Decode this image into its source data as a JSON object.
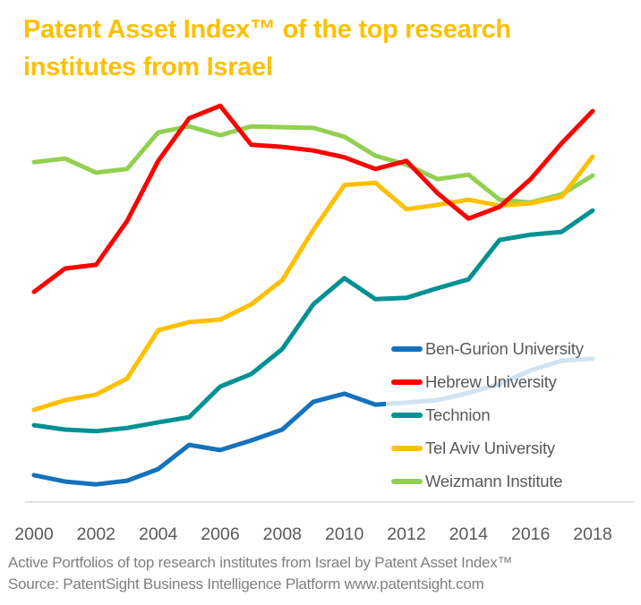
{
  "page": {
    "background_color": "#FFFFFF"
  },
  "title": {
    "text": "Patent Asset Index™ of the top research institutes from Israel",
    "lines": [
      "Patent Asset Index™ of the top research",
      "institutes from Israel"
    ],
    "color": "#FFC000"
  },
  "chart_data": {
    "type": "line",
    "x": [
      2000,
      2001,
      2002,
      2003,
      2004,
      2005,
      2006,
      2007,
      2008,
      2009,
      2010,
      2011,
      2012,
      2013,
      2014,
      2015,
      2016,
      2017,
      2018
    ],
    "x_ticks": [
      "2000",
      "2002",
      "2004",
      "2006",
      "2008",
      "2010",
      "2012",
      "2014",
      "2016",
      "2018"
    ],
    "series": [
      {
        "name": "Ben-Gurion University",
        "color": "#1572BD",
        "values": [
          6.7,
          5.1,
          4.4,
          5.3,
          8.2,
          14.2,
          12.9,
          15.3,
          18.0,
          24.9,
          26.9,
          24.2,
          24.7,
          25.3,
          27.1,
          29.3,
          32.7,
          35.1,
          35.6
        ]
      },
      {
        "name": "Hebrew University",
        "color": "#FE0000",
        "values": [
          52.2,
          58.0,
          58.9,
          69.8,
          84.7,
          95.3,
          98.4,
          88.7,
          88.2,
          87.3,
          85.6,
          82.7,
          84.7,
          76.7,
          70.4,
          73.3,
          80.2,
          89.1,
          97.1
        ]
      },
      {
        "name": "Technion",
        "color": "#009193",
        "values": [
          19.1,
          18.0,
          17.6,
          18.4,
          19.8,
          21.1,
          28.7,
          31.8,
          38.0,
          49.1,
          55.6,
          50.4,
          50.7,
          53.1,
          55.3,
          65.1,
          66.4,
          67.1,
          72.4
        ]
      },
      {
        "name": "Tel Aviv University",
        "color": "#FFC000",
        "values": [
          22.9,
          25.3,
          26.7,
          30.7,
          42.7,
          44.7,
          45.3,
          49.1,
          55.1,
          67.6,
          78.7,
          79.3,
          72.7,
          73.8,
          75.1,
          73.6,
          74.2,
          75.8,
          85.8
        ]
      },
      {
        "name": "Weizmann Institute",
        "color": "#92D050",
        "values": [
          84.4,
          85.3,
          81.8,
          82.7,
          91.8,
          93.3,
          91.1,
          93.3,
          93.1,
          92.9,
          90.7,
          86.0,
          83.8,
          80.2,
          81.3,
          75.1,
          74.4,
          76.4,
          81.1
        ]
      }
    ],
    "title": "Patent Asset Index™ of the top research institutes from Israel",
    "xlabel": "",
    "ylabel": "",
    "ylim": [
      0,
      105
    ],
    "y_axis_hidden": true,
    "grid": false,
    "legend_position": "inside-right-bottom",
    "axis_line_color": "#D9D9D9",
    "tick_label_color": "#595959",
    "line_width": 5
  },
  "footer": {
    "line1": "Active Portfolios of top research institutes from Israel by Patent Asset Index™",
    "line2": "Source: PatentSight Business Intelligence Platform www.patentsight.com",
    "color": "#7F7F7F"
  }
}
